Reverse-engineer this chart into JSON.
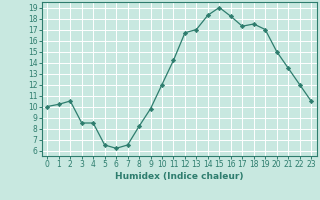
{
  "x": [
    0,
    1,
    2,
    3,
    4,
    5,
    6,
    7,
    8,
    9,
    10,
    11,
    12,
    13,
    14,
    15,
    16,
    17,
    18,
    19,
    20,
    21,
    22,
    23
  ],
  "y": [
    10,
    10.2,
    10.5,
    8.5,
    8.5,
    6.5,
    6.2,
    6.5,
    8.2,
    9.8,
    12.0,
    14.2,
    16.7,
    17.0,
    18.3,
    19.0,
    18.2,
    17.3,
    17.5,
    17.0,
    15.0,
    13.5,
    12.0,
    10.5
  ],
  "line_color": "#2e7d6e",
  "marker": "D",
  "marker_size": 2.2,
  "bg_color": "#c8e8e0",
  "grid_color": "#ffffff",
  "xlabel": "Humidex (Indice chaleur)",
  "xlim": [
    -0.5,
    23.5
  ],
  "ylim": [
    5.5,
    19.5
  ],
  "yticks": [
    6,
    7,
    8,
    9,
    10,
    11,
    12,
    13,
    14,
    15,
    16,
    17,
    18,
    19
  ],
  "xticks": [
    0,
    1,
    2,
    3,
    4,
    5,
    6,
    7,
    8,
    9,
    10,
    11,
    12,
    13,
    14,
    15,
    16,
    17,
    18,
    19,
    20,
    21,
    22,
    23
  ],
  "tick_fontsize": 5.5,
  "label_fontsize": 6.5,
  "tick_color": "#2e7d6e",
  "spine_color": "#2e7d6e"
}
